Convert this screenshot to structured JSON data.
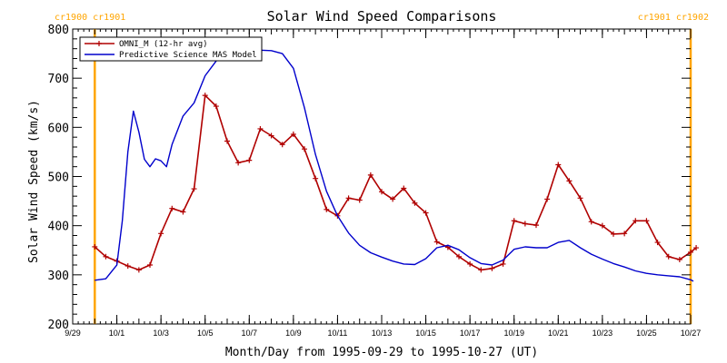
{
  "chart_data": {
    "type": "line",
    "title": "Solar Wind Speed Comparisons",
    "xlabel": "Month/Day from 1995-09-29 to 1995-10-27 (UT)",
    "ylabel": "Solar Wind Speed (km/s)",
    "xlim": [
      "1995-09-29",
      "1995-10-27"
    ],
    "ylim": [
      200,
      800
    ],
    "x_tick_labels": [
      "9/29",
      "10/1",
      "10/3",
      "10/5",
      "10/7",
      "10/9",
      "10/11",
      "10/13",
      "10/15",
      "10/17",
      "10/19",
      "10/21",
      "10/23",
      "10/25",
      "10/27"
    ],
    "y_tick_labels": [
      "200",
      "300",
      "400",
      "500",
      "600",
      "700",
      "800"
    ],
    "y_ticks": [
      200,
      300,
      400,
      500,
      600,
      700,
      800
    ],
    "grid": false,
    "legend_position": "top-left",
    "rotation_markers": [
      {
        "date": "1995-09-30 00:00",
        "label": "cr1900 cr1901",
        "color": "#ffa500"
      },
      {
        "date": "1995-10-27 00:00",
        "label": "cr1901 cr1902",
        "color": "#ffa500"
      }
    ],
    "series": [
      {
        "name": "OMNI_M (12-hr avg)",
        "color": "#b00000",
        "marker": "+",
        "points": [
          [
            "1995-09-30 00:00",
            357
          ],
          [
            "1995-09-30 12:00",
            337
          ],
          [
            "1995-10-01 00:00",
            328
          ],
          [
            "1995-10-01 12:00",
            318
          ],
          [
            "1995-10-02 00:00",
            310
          ],
          [
            "1995-10-02 12:00",
            320
          ],
          [
            "1995-10-03 00:00",
            384
          ],
          [
            "1995-10-03 12:00",
            435
          ],
          [
            "1995-10-04 00:00",
            428
          ],
          [
            "1995-10-04 12:00",
            475
          ],
          [
            "1995-10-05 00:00",
            665
          ],
          [
            "1995-10-05 12:00",
            643
          ],
          [
            "1995-10-06 00:00",
            572
          ],
          [
            "1995-10-06 12:00",
            528
          ],
          [
            "1995-10-07 00:00",
            533
          ],
          [
            "1995-10-07 12:00",
            597
          ],
          [
            "1995-10-08 00:00",
            583
          ],
          [
            "1995-10-08 12:00",
            565
          ],
          [
            "1995-10-09 00:00",
            586
          ],
          [
            "1995-10-09 12:00",
            556
          ],
          [
            "1995-10-10 00:00",
            496
          ],
          [
            "1995-10-10 12:00",
            433
          ],
          [
            "1995-10-11 00:00",
            420
          ],
          [
            "1995-10-11 12:00",
            456
          ],
          [
            "1995-10-12 00:00",
            452
          ],
          [
            "1995-10-12 12:00",
            503
          ],
          [
            "1995-10-13 00:00",
            469
          ],
          [
            "1995-10-13 12:00",
            454
          ],
          [
            "1995-10-14 00:00",
            476
          ],
          [
            "1995-10-14 12:00",
            446
          ],
          [
            "1995-10-15 00:00",
            426
          ],
          [
            "1995-10-15 12:00",
            367
          ],
          [
            "1995-10-16 00:00",
            356
          ],
          [
            "1995-10-16 12:00",
            337
          ],
          [
            "1995-10-17 00:00",
            322
          ],
          [
            "1995-10-17 12:00",
            310
          ],
          [
            "1995-10-18 00:00",
            313
          ],
          [
            "1995-10-18 12:00",
            322
          ],
          [
            "1995-10-19 00:00",
            410
          ],
          [
            "1995-10-19 12:00",
            404
          ],
          [
            "1995-10-20 00:00",
            401
          ],
          [
            "1995-10-20 12:00",
            454
          ],
          [
            "1995-10-21 00:00",
            524
          ],
          [
            "1995-10-21 12:00",
            491
          ],
          [
            "1995-10-22 00:00",
            456
          ],
          [
            "1995-10-22 12:00",
            408
          ],
          [
            "1995-10-23 00:00",
            400
          ],
          [
            "1995-10-23 12:00",
            383
          ],
          [
            "1995-10-24 00:00",
            384
          ],
          [
            "1995-10-24 12:00",
            410
          ],
          [
            "1995-10-25 00:00",
            410
          ],
          [
            "1995-10-25 12:00",
            366
          ],
          [
            "1995-10-26 00:00",
            337
          ],
          [
            "1995-10-26 12:00",
            331
          ],
          [
            "1995-10-27 00:00",
            346
          ],
          [
            "1995-10-27 06:00",
            355
          ]
        ]
      },
      {
        "name": "Predictive Science MAS Model",
        "color": "#0000cc",
        "marker": "none",
        "points": [
          [
            "1995-09-30 00:00",
            289
          ],
          [
            "1995-09-30 12:00",
            292
          ],
          [
            "1995-10-01 00:00",
            320
          ],
          [
            "1995-10-01 06:00",
            410
          ],
          [
            "1995-10-01 12:00",
            550
          ],
          [
            "1995-10-01 18:00",
            633
          ],
          [
            "1995-10-02 00:00",
            590
          ],
          [
            "1995-10-02 06:00",
            535
          ],
          [
            "1995-10-02 12:00",
            520
          ],
          [
            "1995-10-02 18:00",
            536
          ],
          [
            "1995-10-03 00:00",
            532
          ],
          [
            "1995-10-03 06:00",
            520
          ],
          [
            "1995-10-03 12:00",
            565
          ],
          [
            "1995-10-04 00:00",
            623
          ],
          [
            "1995-10-04 12:00",
            650
          ],
          [
            "1995-10-05 00:00",
            705
          ],
          [
            "1995-10-05 12:00",
            735
          ],
          [
            "1995-10-06 00:00",
            752
          ],
          [
            "1995-10-06 12:00",
            756
          ],
          [
            "1995-10-07 00:00",
            756
          ],
          [
            "1995-10-07 12:00",
            757
          ],
          [
            "1995-10-08 00:00",
            756
          ],
          [
            "1995-10-08 12:00",
            750
          ],
          [
            "1995-10-09 00:00",
            720
          ],
          [
            "1995-10-09 12:00",
            640
          ],
          [
            "1995-10-10 00:00",
            545
          ],
          [
            "1995-10-10 12:00",
            470
          ],
          [
            "1995-10-11 00:00",
            420
          ],
          [
            "1995-10-11 12:00",
            385
          ],
          [
            "1995-10-12 00:00",
            360
          ],
          [
            "1995-10-12 12:00",
            345
          ],
          [
            "1995-10-13 00:00",
            336
          ],
          [
            "1995-10-13 12:00",
            328
          ],
          [
            "1995-10-14 00:00",
            322
          ],
          [
            "1995-10-14 12:00",
            321
          ],
          [
            "1995-10-15 00:00",
            333
          ],
          [
            "1995-10-15 12:00",
            355
          ],
          [
            "1995-10-16 00:00",
            360
          ],
          [
            "1995-10-16 12:00",
            351
          ],
          [
            "1995-10-17 00:00",
            335
          ],
          [
            "1995-10-17 12:00",
            323
          ],
          [
            "1995-10-18 00:00",
            320
          ],
          [
            "1995-10-18 12:00",
            330
          ],
          [
            "1995-10-19 00:00",
            352
          ],
          [
            "1995-10-19 12:00",
            357
          ],
          [
            "1995-10-20 00:00",
            355
          ],
          [
            "1995-10-20 12:00",
            355
          ],
          [
            "1995-10-21 00:00",
            366
          ],
          [
            "1995-10-21 12:00",
            370
          ],
          [
            "1995-10-22 00:00",
            355
          ],
          [
            "1995-10-22 12:00",
            342
          ],
          [
            "1995-10-23 00:00",
            332
          ],
          [
            "1995-10-23 12:00",
            323
          ],
          [
            "1995-10-24 00:00",
            316
          ],
          [
            "1995-10-24 12:00",
            308
          ],
          [
            "1995-10-25 00:00",
            303
          ],
          [
            "1995-10-25 12:00",
            300
          ],
          [
            "1995-10-26 00:00",
            298
          ],
          [
            "1995-10-26 12:00",
            296
          ],
          [
            "1995-10-27 00:00",
            290
          ],
          [
            "1995-10-27 03:00",
            287
          ]
        ]
      }
    ]
  }
}
